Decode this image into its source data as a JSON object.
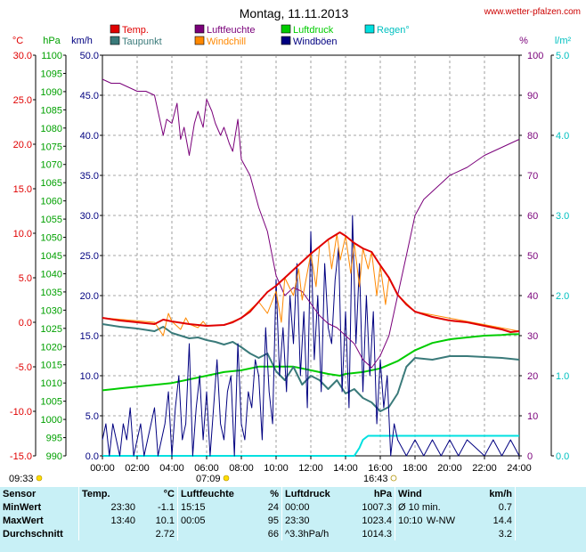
{
  "header": {
    "title": "Montag, 11.11.2013",
    "site": "www.wetter-pfalzen.com"
  },
  "units": {
    "temp": "°C",
    "pressure": "hPa",
    "wind": "km/h",
    "humidity": "%",
    "rain": "l/m²"
  },
  "legend": [
    {
      "label": "Temp.",
      "color": "#e00000"
    },
    {
      "label": "Luftfeuchte",
      "color": "#7a007a"
    },
    {
      "label": "Luftdruck",
      "color": "#00cc00"
    },
    {
      "label": "Regen°",
      "color": "#00e0e0"
    },
    {
      "label": "Taupunkt",
      "color": "#3a7a7a"
    },
    {
      "label": "Windchill",
      "color": "#ff8800"
    },
    {
      "label": "Windböen",
      "color": "#000080"
    }
  ],
  "astro": {
    "sunrise_label": "07:09",
    "sunset_label": "16:43",
    "moon_label": "09:33"
  },
  "chart_data": {
    "type": "line",
    "title": "Montag, 11.11.2013",
    "x_ticks": [
      "00:00",
      "02:00",
      "04:00",
      "06:00",
      "08:00",
      "10:00",
      "12:00",
      "14:00",
      "16:00",
      "18:00",
      "20:00",
      "22:00",
      "24:00"
    ],
    "axes": {
      "temp": {
        "unit": "°C",
        "range": [
          -15,
          30
        ],
        "ticks": [
          "30.0",
          "25.0",
          "20.0",
          "15.0",
          "10.0",
          "5.0",
          "0.0",
          "-5.0",
          "-10.0",
          "-15.0"
        ]
      },
      "pressure": {
        "unit": "hPa",
        "range": [
          990,
          1100
        ],
        "ticks": [
          "1100",
          "1095",
          "1090",
          "1085",
          "1080",
          "1075",
          "1070",
          "1065",
          "1060",
          "1055",
          "1050",
          "1045",
          "1040",
          "1035",
          "1030",
          "1025",
          "1020",
          "1015",
          "1010",
          "1005",
          "1000",
          "995",
          "990"
        ]
      },
      "wind": {
        "unit": "km/h",
        "range": [
          0,
          50
        ],
        "ticks": [
          "50.0",
          "45.0",
          "40.0",
          "35.0",
          "30.0",
          "25.0",
          "20.0",
          "15.0",
          "10.0",
          "5.0",
          "0.0"
        ]
      },
      "humidity": {
        "unit": "%",
        "range": [
          0,
          100
        ],
        "ticks": [
          "100",
          "90",
          "80",
          "70",
          "60",
          "50",
          "40",
          "30",
          "20",
          "10",
          "0"
        ]
      },
      "rain": {
        "unit": "l/m²",
        "range": [
          0,
          5
        ],
        "ticks": [
          "5.0",
          "4.0",
          "3.0",
          "2.0",
          "1.0",
          "0.0"
        ]
      }
    },
    "series": [
      {
        "name": "Temp.",
        "axis": "temp",
        "color": "#e00000",
        "width": 2,
        "x": [
          0,
          1,
          2,
          3,
          3.5,
          4,
          5,
          6,
          7,
          7.5,
          8,
          8.5,
          9,
          9.5,
          10,
          10.5,
          11,
          11.5,
          12,
          12.5,
          13,
          13.5,
          13.67,
          14,
          14.5,
          15,
          15.5,
          16,
          16.5,
          17,
          17.5,
          18,
          19,
          20,
          21,
          22,
          22.5,
          23,
          23.5,
          24
        ],
        "y": [
          0.5,
          0.2,
          0,
          -0.2,
          0.3,
          0.1,
          -0.2,
          -0.4,
          -0.3,
          0,
          0.5,
          1.2,
          2.3,
          3.4,
          4.1,
          5,
          5.9,
          6.8,
          7.7,
          8.5,
          9.3,
          9.9,
          10.1,
          9.7,
          8.9,
          8.3,
          7.9,
          6.4,
          5,
          3.1,
          2,
          1.2,
          0.6,
          0.2,
          0,
          -0.4,
          -0.6,
          -0.8,
          -1.1,
          -1
        ]
      },
      {
        "name": "Taupunkt",
        "axis": "temp",
        "color": "#3a7a7a",
        "width": 2,
        "x": [
          0,
          1,
          2,
          3,
          3.5,
          4,
          4.5,
          5,
          5.5,
          6,
          6.5,
          7,
          7.5,
          8,
          8.5,
          9,
          9.5,
          10,
          10.5,
          11,
          11.5,
          12,
          12.5,
          13,
          13.5,
          14,
          14.5,
          15,
          15.5,
          16,
          16.5,
          17,
          17.5,
          18,
          19,
          20,
          21,
          22,
          23,
          24
        ],
        "y": [
          -0.2,
          -0.5,
          -0.7,
          -1,
          -0.5,
          -1.2,
          -1.5,
          -1.8,
          -1.7,
          -2,
          -2.2,
          -2.5,
          -2.2,
          -2.8,
          -3.5,
          -4,
          -3.5,
          -5.5,
          -6.5,
          -5,
          -7,
          -6,
          -6.5,
          -7.5,
          -6.5,
          -8,
          -7.5,
          -8.5,
          -9,
          -10,
          -9.5,
          -8,
          -5,
          -4,
          -4.2,
          -3.8,
          -3.8,
          -3.9,
          -4,
          -4.2
        ]
      },
      {
        "name": "Windchill",
        "axis": "temp",
        "color": "#ff8800",
        "width": 1,
        "x": [
          0,
          3,
          3.5,
          3.8,
          4,
          4.5,
          4.8,
          5,
          5.5,
          5.8,
          6,
          7,
          8,
          9,
          9.5,
          10,
          10.3,
          10.5,
          11,
          11.3,
          11.5,
          12,
          12.3,
          12.5,
          13,
          13.2,
          13.5,
          13.7,
          14,
          14.3,
          14.5,
          14.8,
          15,
          15.3,
          15.5,
          15.8,
          16,
          16.3,
          16.5,
          17,
          18,
          24
        ],
        "y": [
          0.5,
          0,
          -1.5,
          1,
          0.1,
          -0.8,
          0.5,
          -0.2,
          -0.6,
          0.1,
          -0.4,
          -0.3,
          0.5,
          2.3,
          1,
          3.5,
          0,
          5,
          3,
          6,
          2.5,
          7.7,
          4,
          8.5,
          9.3,
          6,
          9.9,
          7,
          9.7,
          5.5,
          8.9,
          4,
          8.3,
          6,
          7.9,
          3,
          6.4,
          2,
          5,
          3.1,
          1.2,
          -1
        ]
      },
      {
        "name": "Luftfeuchte",
        "axis": "humidity",
        "color": "#7a007a",
        "width": 1,
        "x": [
          0,
          0.5,
          1,
          1.5,
          2,
          2.5,
          3,
          3.2,
          3.5,
          3.7,
          4,
          4.3,
          4.5,
          4.7,
          5,
          5.3,
          5.5,
          5.8,
          6,
          6.3,
          6.5,
          6.8,
          7,
          7.3,
          7.5,
          7.8,
          8,
          8.5,
          9,
          9.5,
          10,
          10.5,
          11,
          11.5,
          12,
          12.5,
          13,
          13.5,
          14,
          14.5,
          15,
          15.5,
          16,
          16.5,
          17,
          17.5,
          18,
          18.5,
          19,
          19.5,
          20,
          21,
          22,
          23,
          24
        ],
        "y": [
          94,
          93,
          93,
          92,
          91,
          91,
          90,
          86,
          80,
          84,
          83,
          88,
          79,
          82,
          75,
          83,
          86,
          82,
          89,
          86,
          83,
          80,
          82,
          78,
          76,
          84,
          74,
          70,
          62,
          56,
          45,
          40,
          42,
          41,
          38,
          35,
          33,
          32,
          30,
          28,
          24,
          22,
          25,
          30,
          40,
          50,
          60,
          64,
          66,
          68,
          70,
          72,
          75,
          77,
          79
        ]
      },
      {
        "name": "Luftdruck",
        "axis": "pressure",
        "color": "#00cc00",
        "width": 2,
        "x": [
          0,
          1,
          2,
          3,
          4,
          5,
          6,
          7,
          8,
          9,
          10,
          11,
          12,
          13,
          13.67,
          14,
          15,
          16,
          17,
          18,
          19,
          20,
          21,
          22,
          23,
          23.5,
          24
        ],
        "y": [
          1008,
          1008.5,
          1009,
          1009.5,
          1010,
          1011,
          1012,
          1013,
          1013.5,
          1014.5,
          1014.5,
          1014.5,
          1013.5,
          1012.5,
          1012,
          1012.5,
          1013,
          1014,
          1016,
          1019,
          1021,
          1022,
          1022.5,
          1023,
          1023.2,
          1023.4,
          1023.4
        ]
      },
      {
        "name": "Windböen",
        "axis": "wind",
        "color": "#000080",
        "width": 1,
        "x": [
          0,
          0.2,
          0.4,
          0.6,
          0.8,
          1,
          1.2,
          1.4,
          1.6,
          1.8,
          2,
          2.2,
          2.4,
          2.6,
          2.8,
          3,
          3.2,
          3.4,
          3.6,
          3.8,
          4,
          4.2,
          4.4,
          4.6,
          4.8,
          5,
          5.2,
          5.4,
          5.6,
          5.8,
          6,
          6.2,
          6.4,
          6.6,
          6.8,
          7,
          7.2,
          7.4,
          7.6,
          7.8,
          8,
          8.2,
          8.4,
          8.6,
          8.8,
          9,
          9.2,
          9.4,
          9.6,
          9.8,
          10,
          10.2,
          10.4,
          10.6,
          10.8,
          11,
          11.2,
          11.4,
          11.6,
          11.8,
          12,
          12.2,
          12.4,
          12.6,
          12.8,
          13,
          13.2,
          13.4,
          13.6,
          13.8,
          14,
          14.2,
          14.4,
          14.6,
          14.8,
          15,
          15.2,
          15.4,
          15.6,
          15.8,
          16,
          16.2,
          16.4,
          16.6,
          16.8,
          17,
          17.5,
          18,
          18.5,
          19,
          19.5,
          20,
          20.5,
          21,
          21.5,
          22,
          22.5,
          23,
          23.5,
          24
        ],
        "y": [
          2,
          4,
          0,
          4,
          2,
          0,
          4,
          2,
          6,
          0,
          2,
          4,
          0,
          2,
          4,
          6,
          0,
          2,
          4,
          8,
          0,
          6,
          10,
          2,
          4,
          14,
          0,
          6,
          10,
          2,
          8,
          0,
          6,
          12,
          4,
          2,
          8,
          10,
          0,
          14,
          4,
          2,
          8,
          6,
          12,
          10,
          2,
          16,
          8,
          4,
          22,
          10,
          16,
          8,
          20,
          14,
          24,
          10,
          18,
          6,
          28,
          12,
          20,
          8,
          24,
          16,
          14,
          22,
          26,
          8,
          18,
          6,
          30,
          14,
          24,
          8,
          20,
          10,
          18,
          4,
          12,
          6,
          10,
          0,
          4,
          2,
          0,
          2,
          0,
          2,
          0,
          2,
          0,
          2,
          1,
          0,
          2,
          0,
          2,
          0
        ]
      },
      {
        "name": "Regen°",
        "axis": "rain",
        "color": "#00e0e0",
        "width": 2,
        "x": [
          0,
          14.5,
          14.8,
          15,
          15.3,
          16,
          24
        ],
        "y": [
          0,
          0,
          0.1,
          0.2,
          0.25,
          0.25,
          0.25
        ]
      }
    ]
  },
  "stats": {
    "headers": [
      "Sensor",
      "Temp.",
      "°C",
      "Luftfeuchte",
      "%",
      "Luftdruck",
      "hPa",
      "Wind",
      "km/h"
    ],
    "rows": [
      {
        "label": "MinWert",
        "t_time": "23:30",
        "t_val": "-1.1",
        "h_time": "15:15",
        "h_val": "24",
        "p_time": "00:00",
        "p_val": "1007.3",
        "w_time": "Ø 10 min.",
        "w_val": "0.7"
      },
      {
        "label": "MaxWert",
        "t_time": "13:40",
        "t_val": "10.1",
        "h_time": "00:05",
        "h_val": "95",
        "p_time": "23:30",
        "p_val": "1023.4",
        "w_time": "10:10",
        "w_dir": "W-NW",
        "w_val": "14.4"
      },
      {
        "label": "Durchschnitt",
        "t_time": "",
        "t_val": "2.72",
        "h_time": "",
        "h_val": "66",
        "p_time": "^3.3hPa/h",
        "p_val": "1014.3",
        "w_time": "",
        "w_val": "3.2"
      }
    ]
  }
}
